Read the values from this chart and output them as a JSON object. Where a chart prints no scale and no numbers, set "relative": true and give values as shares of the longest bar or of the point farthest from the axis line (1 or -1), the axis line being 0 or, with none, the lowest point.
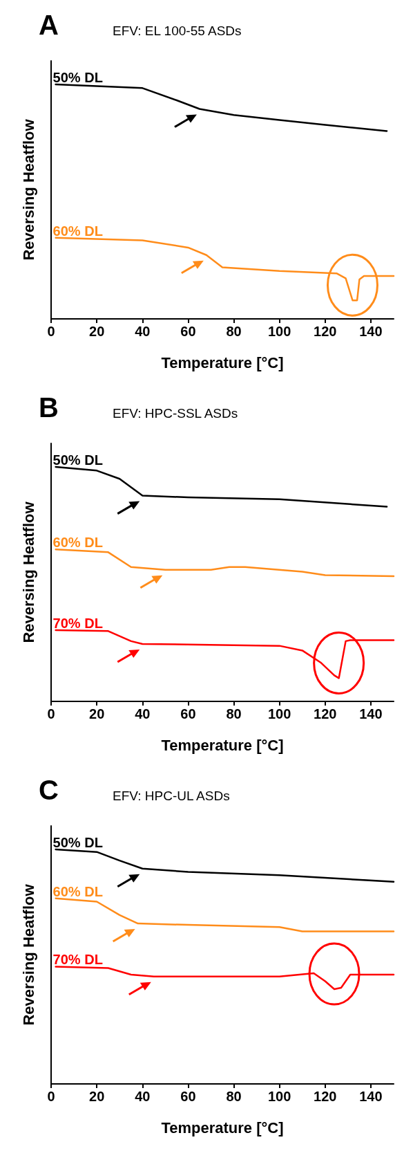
{
  "chart_data": [
    {
      "type": "line",
      "title": "EFV: EL 100-55 ASDs",
      "annotations": [
        "A"
      ],
      "xlabel": "Temperature [°C]",
      "ylabel": "Reversing Heatflow",
      "relative": true,
      "xlim": [
        0,
        150
      ],
      "xticks": [
        0,
        20,
        40,
        60,
        80,
        100,
        120,
        140
      ],
      "grid": false,
      "legend": false,
      "marker": "none",
      "line_style": "solid",
      "series": [
        {
          "name": "50% DL",
          "color": "#000000",
          "x": [
            2,
            40,
            55,
            65,
            80,
            100,
            120,
            147
          ],
          "values": [
            1.0,
            0.984,
            0.932,
            0.895,
            0.869,
            0.848,
            0.827,
            0.801
          ]
        },
        {
          "name": "60% DL",
          "color": "#ff8c1a",
          "x": [
            2,
            40,
            60,
            68,
            75,
            100,
            125,
            129,
            132,
            134,
            135,
            137,
            150
          ],
          "values": [
            0.346,
            0.335,
            0.304,
            0.272,
            0.22,
            0.204,
            0.194,
            0.173,
            0.079,
            0.079,
            0.168,
            0.183,
            0.183
          ]
        }
      ]
    },
    {
      "type": "line",
      "title": "EFV: HPC-SSL ASDs",
      "annotations": [
        "B"
      ],
      "xlabel": "Temperature [°C]",
      "ylabel": "Reversing Heatflow",
      "relative": true,
      "xlim": [
        0,
        150
      ],
      "xticks": [
        0,
        20,
        40,
        60,
        80,
        100,
        120,
        140
      ],
      "grid": false,
      "legend": false,
      "marker": "none",
      "line_style": "solid",
      "series": [
        {
          "name": "50% DL",
          "color": "#000000",
          "x": [
            2,
            20,
            30,
            40,
            60,
            100,
            147
          ],
          "values": [
            1.0,
            0.984,
            0.949,
            0.877,
            0.87,
            0.862,
            0.83
          ]
        },
        {
          "name": "60% DL",
          "color": "#ff8c1a",
          "x": [
            2,
            25,
            35,
            50,
            70,
            78,
            85,
            110,
            120,
            150
          ],
          "values": [
            0.648,
            0.636,
            0.573,
            0.561,
            0.561,
            0.573,
            0.573,
            0.553,
            0.538,
            0.534
          ]
        },
        {
          "name": "70% DL",
          "color": "#ff0000",
          "x": [
            2,
            25,
            35,
            40,
            100,
            110,
            118,
            124,
            126,
            129,
            131,
            150
          ],
          "values": [
            0.304,
            0.3,
            0.257,
            0.245,
            0.237,
            0.217,
            0.166,
            0.111,
            0.099,
            0.257,
            0.261,
            0.261
          ]
        }
      ]
    },
    {
      "type": "line",
      "title": "EFV: HPC-UL ASDs",
      "annotations": [
        "C"
      ],
      "xlabel": "Temperature [°C]",
      "ylabel": "Reversing Heatflow",
      "relative": true,
      "xlim": [
        0,
        150
      ],
      "xticks": [
        0,
        20,
        40,
        60,
        80,
        100,
        120,
        140
      ],
      "grid": false,
      "legend": false,
      "marker": "none",
      "line_style": "solid",
      "series": [
        {
          "name": "50% DL",
          "color": "#000000",
          "x": [
            2,
            20,
            30,
            40,
            60,
            100,
            150
          ],
          "values": [
            1.0,
            0.989,
            0.952,
            0.918,
            0.904,
            0.89,
            0.862
          ]
        },
        {
          "name": "60% DL",
          "color": "#ff8c1a",
          "x": [
            2,
            20,
            30,
            38,
            60,
            100,
            110,
            150
          ],
          "values": [
            0.791,
            0.777,
            0.72,
            0.684,
            0.678,
            0.669,
            0.65,
            0.65
          ]
        },
        {
          "name": "70% DL",
          "color": "#ff0000",
          "x": [
            2,
            25,
            35,
            45,
            100,
            115,
            120,
            124,
            127,
            131,
            150
          ],
          "values": [
            0.5,
            0.494,
            0.466,
            0.458,
            0.458,
            0.472,
            0.438,
            0.404,
            0.41,
            0.466,
            0.466
          ]
        }
      ]
    }
  ]
}
